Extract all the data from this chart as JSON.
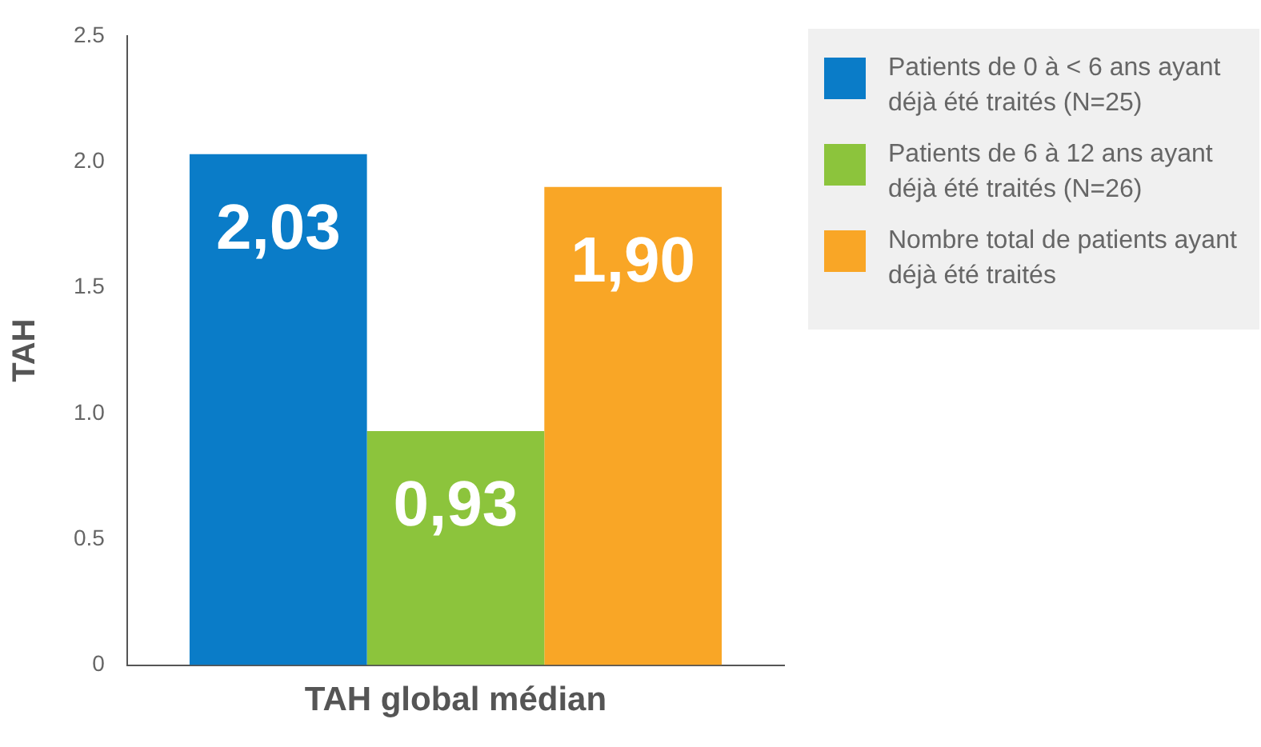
{
  "chart_data": {
    "type": "bar",
    "ylabel": "TAH",
    "categories": [
      "TAH global médian"
    ],
    "series": [
      {
        "name": "Patients de 0 à < 6 ans ayant déjà été traités (N=25)",
        "color": "#0a7cc8",
        "values": [
          2.03
        ],
        "value_labels": [
          "2,03"
        ]
      },
      {
        "name": "Patients de 6 à 12 ans ayant déjà été traités (N=26)",
        "color": "#8cc43c",
        "values": [
          0.93
        ],
        "value_labels": [
          "0,93"
        ]
      },
      {
        "name": "Nombre total de patients ayant déjà été traités",
        "color": "#f9a626",
        "values": [
          1.9
        ],
        "value_labels": [
          "1,90"
        ]
      }
    ],
    "ylim": [
      0,
      2.5
    ],
    "yticks": [
      0,
      {
        "value": 0.5,
        "label": "0.5"
      },
      {
        "value": 1,
        "label": "1.0"
      },
      {
        "value": 1.5,
        "label": "1.5"
      },
      {
        "value": 2,
        "label": "2.0"
      },
      {
        "value": 2.5,
        "label": "2.5"
      }
    ],
    "grid": false,
    "legend": "top right"
  }
}
